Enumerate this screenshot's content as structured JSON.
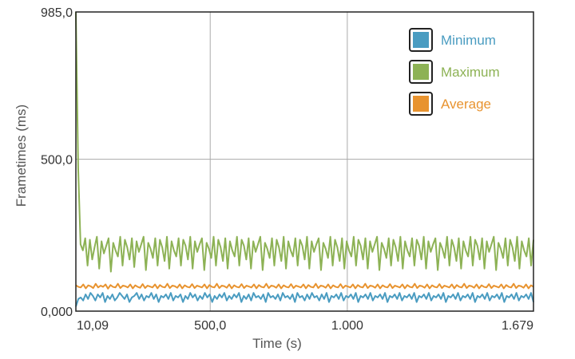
{
  "chart_data": {
    "type": "line",
    "xlabel": "Time (s)",
    "ylabel": "Frametimes (ms)",
    "xlim": [
      10.09,
      1679
    ],
    "ylim": [
      0,
      985
    ],
    "x_ticks": [
      {
        "value": 10.09,
        "label": "10,09"
      },
      {
        "value": 500,
        "label": "500,0"
      },
      {
        "value": 1000,
        "label": "1.000"
      },
      {
        "value": 1679,
        "label": "1.679"
      }
    ],
    "y_ticks": [
      {
        "value": 0,
        "label": "0,000"
      },
      {
        "value": 500,
        "label": "500,0"
      },
      {
        "value": 985,
        "label": "985,0"
      }
    ],
    "grid": true,
    "legend_position": "top-right",
    "series": [
      {
        "name": "Minimum",
        "color": "#4a9cc1",
        "x_start": 10.09,
        "x_end": 1679,
        "values": [
          15,
          40,
          45,
          35,
          55,
          40,
          60,
          50,
          35,
          55,
          45,
          60,
          30,
          50,
          40,
          55,
          35,
          45,
          60,
          50,
          40,
          55,
          30,
          45,
          50,
          60,
          40,
          55,
          35,
          50,
          45,
          60,
          40,
          55,
          30,
          50,
          45,
          55,
          40,
          60,
          35,
          50,
          45,
          55,
          30,
          50,
          40,
          60,
          45,
          55,
          35,
          50,
          40,
          60,
          45,
          55,
          30,
          50,
          40,
          55,
          45,
          60,
          35,
          50,
          40,
          55,
          45,
          60,
          30,
          50,
          40,
          55,
          35,
          60,
          45,
          50,
          40,
          55,
          30,
          60,
          45,
          50,
          40,
          55,
          35,
          60,
          45,
          50,
          40,
          55,
          30,
          60,
          45,
          50,
          35,
          55,
          40,
          60,
          45,
          50,
          35,
          55,
          40,
          60,
          30,
          50,
          45,
          55,
          40,
          60,
          35,
          50,
          45,
          55,
          40,
          60,
          30,
          50,
          45,
          55,
          40,
          60,
          35,
          50,
          45,
          55,
          40,
          60,
          30,
          50,
          45,
          55,
          40,
          60,
          35,
          50,
          45,
          55,
          40,
          60,
          30,
          50,
          45,
          55,
          40,
          60,
          35,
          50,
          45,
          55,
          40,
          60,
          30,
          50,
          45,
          55,
          40,
          60,
          35,
          50,
          45,
          55,
          40,
          60,
          30,
          50,
          45,
          55,
          40,
          60,
          35,
          50,
          45,
          55,
          40,
          60,
          30,
          50,
          45,
          55,
          40,
          60,
          35,
          50,
          45,
          55,
          40,
          60,
          30
        ]
      },
      {
        "name": "Maximum",
        "color": "#8db255",
        "x_start": 10.09,
        "x_end": 1679,
        "values": [
          985,
          470,
          220,
          200,
          240,
          150,
          235,
          170,
          210,
          245,
          140,
          230,
          190,
          215,
          240,
          130,
          225,
          200,
          180,
          245,
          150,
          235,
          210,
          170,
          240,
          145,
          230,
          195,
          220,
          245,
          135,
          225,
          205,
          175,
          240,
          150,
          235,
          210,
          165,
          245,
          140,
          230,
          200,
          180,
          240,
          150,
          235,
          215,
          170,
          245,
          140,
          230,
          195,
          220,
          240,
          135,
          225,
          205,
          175,
          245,
          150,
          235,
          210,
          165,
          240,
          140,
          230,
          200,
          180,
          245,
          150,
          235,
          215,
          170,
          240,
          140,
          230,
          195,
          220,
          245,
          135,
          225,
          205,
          175,
          240,
          150,
          235,
          210,
          165,
          245,
          140,
          230,
          200,
          180,
          240,
          150,
          235,
          215,
          170,
          245,
          140,
          230,
          195,
          220,
          240,
          135,
          225,
          205,
          175,
          245,
          150,
          235,
          210,
          165,
          240,
          140,
          230,
          200,
          180,
          245,
          150,
          235,
          215,
          170,
          240,
          140,
          230,
          195,
          220,
          245,
          135,
          225,
          205,
          175,
          240,
          150,
          235,
          210,
          165,
          245,
          140,
          230,
          200,
          180,
          240,
          150,
          235,
          215,
          170,
          245,
          140,
          230,
          195,
          220,
          240,
          135,
          225,
          205,
          175,
          245,
          150,
          235,
          210,
          165,
          240,
          140,
          230,
          200,
          180,
          245,
          150,
          235,
          215,
          170,
          240,
          140,
          230,
          195,
          220,
          245,
          135,
          225,
          205,
          175,
          240,
          150,
          235,
          210,
          165,
          245,
          140,
          230,
          200,
          180,
          240,
          150,
          235
        ]
      },
      {
        "name": "Average",
        "color": "#e8932f",
        "x_start": 10.09,
        "x_end": 1679,
        "values": [
          85,
          80,
          78,
          88,
          75,
          85,
          82,
          76,
          90,
          78,
          84,
          80,
          88,
          74,
          86,
          80,
          78,
          90,
          76,
          84,
          82,
          78,
          88,
          75,
          85,
          80,
          77,
          89,
          76,
          84,
          81,
          78,
          88,
          75,
          86,
          80,
          78,
          90,
          76,
          84,
          82,
          77,
          88,
          75,
          85,
          80,
          78,
          89,
          76,
          84,
          81,
          78,
          88,
          75,
          86,
          80,
          78,
          90,
          76,
          84,
          82,
          77,
          88,
          75,
          85,
          80,
          78,
          89,
          76,
          84,
          81,
          78,
          88,
          75,
          86,
          80,
          78,
          90,
          76,
          84,
          82,
          77,
          88,
          75,
          85,
          80,
          78,
          89,
          76,
          84,
          81,
          78,
          88,
          75,
          86,
          80,
          78,
          90,
          76,
          84,
          82,
          77,
          88,
          75,
          85,
          80,
          78,
          89,
          76,
          84,
          81,
          78,
          88,
          75,
          86,
          80,
          78,
          90,
          76,
          84,
          82,
          77,
          88,
          75,
          85,
          80,
          78,
          89,
          76,
          84,
          81,
          78,
          88,
          75,
          86,
          80,
          78,
          90,
          76,
          84,
          82,
          77,
          88,
          75,
          85,
          80,
          78,
          89,
          76,
          84,
          81,
          78,
          88,
          75,
          86,
          80,
          78,
          90,
          76,
          84,
          82,
          77,
          88,
          75,
          85,
          80,
          78,
          89,
          76,
          84,
          81,
          78,
          88,
          75,
          86,
          80,
          78,
          90,
          76,
          84,
          82,
          77,
          88,
          75,
          85,
          80
        ]
      }
    ]
  }
}
